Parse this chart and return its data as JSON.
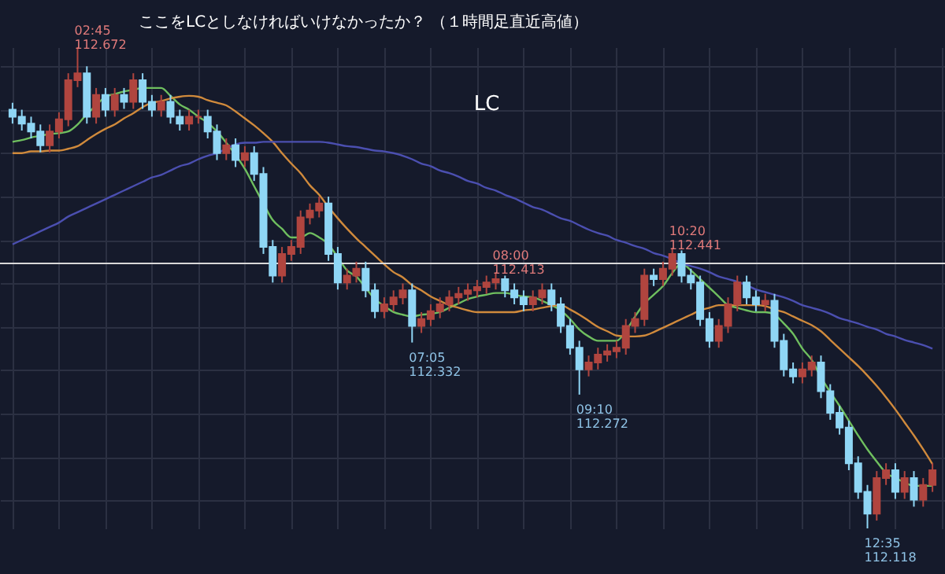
{
  "chart_data": {
    "type": "candlestick",
    "grid": true,
    "categories": [
      null,
      null,
      null,
      null,
      null,
      null,
      null,
      null,
      null,
      null,
      null,
      null,
      null,
      null,
      null,
      null,
      null,
      null,
      null,
      null,
      null,
      null,
      null,
      null,
      null,
      null,
      null,
      null,
      null,
      null,
      null,
      null,
      null,
      null,
      null,
      null,
      null,
      null,
      null,
      null,
      null,
      null,
      null,
      null,
      null,
      null,
      null,
      null,
      null,
      null,
      null,
      null,
      null,
      null,
      null,
      null,
      null,
      null,
      null,
      null,
      null,
      null,
      null,
      null,
      null,
      null,
      null,
      null,
      null,
      null,
      null,
      null,
      null,
      null,
      null,
      null,
      null,
      null,
      null,
      null,
      null,
      null,
      null,
      null,
      null,
      null,
      null,
      null,
      null,
      null,
      null,
      null,
      null,
      null,
      null,
      null,
      null,
      null,
      null,
      null
    ],
    "ohlc": [
      [
        112.6,
        112.608,
        112.584,
        112.592
      ],
      [
        112.592,
        112.6,
        112.576,
        112.584
      ],
      [
        112.584,
        112.592,
        112.567,
        112.575
      ],
      [
        112.575,
        112.583,
        112.551,
        112.559
      ],
      [
        112.559,
        112.583,
        112.551,
        112.575
      ],
      [
        112.575,
        112.597,
        112.567,
        112.589
      ],
      [
        112.589,
        112.642,
        112.581,
        112.634
      ],
      [
        112.634,
        112.672,
        112.626,
        112.642
      ],
      [
        112.642,
        112.65,
        112.584,
        112.592
      ],
      [
        112.592,
        112.625,
        112.584,
        112.617
      ],
      [
        112.617,
        112.625,
        112.592,
        112.6
      ],
      [
        112.6,
        112.625,
        112.592,
        112.617
      ],
      [
        112.617,
        112.625,
        112.601,
        112.609
      ],
      [
        112.609,
        112.642,
        112.601,
        112.634
      ],
      [
        112.634,
        112.642,
        112.601,
        112.609
      ],
      [
        112.609,
        112.617,
        112.592,
        112.6
      ],
      [
        112.6,
        112.617,
        112.592,
        112.609
      ],
      [
        112.609,
        112.617,
        112.584,
        112.592
      ],
      [
        112.592,
        112.6,
        112.576,
        112.584
      ],
      [
        112.584,
        112.6,
        112.576,
        112.592
      ],
      [
        112.592,
        112.6,
        112.584,
        112.592
      ],
      [
        112.592,
        112.6,
        112.567,
        112.575
      ],
      [
        112.575,
        112.583,
        112.542,
        112.55
      ],
      [
        112.55,
        112.567,
        112.542,
        112.559
      ],
      [
        112.559,
        112.567,
        112.534,
        112.542
      ],
      [
        112.542,
        112.558,
        112.534,
        112.55
      ],
      [
        112.55,
        112.558,
        112.518,
        112.526
      ],
      [
        112.526,
        112.534,
        112.434,
        112.442
      ],
      [
        112.442,
        112.45,
        112.401,
        112.409
      ],
      [
        112.409,
        112.442,
        112.401,
        112.434
      ],
      [
        112.434,
        112.45,
        112.426,
        112.442
      ],
      [
        112.442,
        112.484,
        112.434,
        112.476
      ],
      [
        112.476,
        112.492,
        112.468,
        112.484
      ],
      [
        112.484,
        112.5,
        112.476,
        112.492
      ],
      [
        112.492,
        112.5,
        112.426,
        112.434
      ],
      [
        112.434,
        112.442,
        112.393,
        112.401
      ],
      [
        112.401,
        112.417,
        112.393,
        112.409
      ],
      [
        112.409,
        112.425,
        112.401,
        112.417
      ],
      [
        112.417,
        112.425,
        112.384,
        112.392
      ],
      [
        112.392,
        112.4,
        112.36,
        112.368
      ],
      [
        112.368,
        112.384,
        112.36,
        112.376
      ],
      [
        112.376,
        112.392,
        112.368,
        112.384
      ],
      [
        112.384,
        112.4,
        112.376,
        112.392
      ],
      [
        112.392,
        112.4,
        112.332,
        112.351
      ],
      [
        112.351,
        112.367,
        112.343,
        112.359
      ],
      [
        112.359,
        112.376,
        112.351,
        112.368
      ],
      [
        112.368,
        112.384,
        112.36,
        112.376
      ],
      [
        112.376,
        112.392,
        112.368,
        112.384
      ],
      [
        112.384,
        112.396,
        112.376,
        112.388
      ],
      [
        112.388,
        112.4,
        112.38,
        112.392
      ],
      [
        112.392,
        112.404,
        112.384,
        112.396
      ],
      [
        112.396,
        112.409,
        112.388,
        112.401
      ],
      [
        112.401,
        112.413,
        112.393,
        112.405
      ],
      [
        112.405,
        112.409,
        112.384,
        112.392
      ],
      [
        112.392,
        112.4,
        112.376,
        112.384
      ],
      [
        112.384,
        112.392,
        112.368,
        112.376
      ],
      [
        112.376,
        112.392,
        112.368,
        112.384
      ],
      [
        112.384,
        112.4,
        112.376,
        112.392
      ],
      [
        112.392,
        112.4,
        112.368,
        112.376
      ],
      [
        112.376,
        112.384,
        112.343,
        112.351
      ],
      [
        112.351,
        112.359,
        112.318,
        112.326
      ],
      [
        112.326,
        112.334,
        112.272,
        112.301
      ],
      [
        112.301,
        112.317,
        112.293,
        112.309
      ],
      [
        112.309,
        112.326,
        112.301,
        112.318
      ],
      [
        112.318,
        112.33,
        112.31,
        112.322
      ],
      [
        112.322,
        112.334,
        112.314,
        112.326
      ],
      [
        112.326,
        112.359,
        112.318,
        112.351
      ],
      [
        112.351,
        112.367,
        112.343,
        112.359
      ],
      [
        112.359,
        112.417,
        112.351,
        112.409
      ],
      [
        112.409,
        112.417,
        112.397,
        112.405
      ],
      [
        112.405,
        112.425,
        112.397,
        112.417
      ],
      [
        112.417,
        112.441,
        112.409,
        112.434
      ],
      [
        112.434,
        112.438,
        112.401,
        112.409
      ],
      [
        112.409,
        112.417,
        112.393,
        112.401
      ],
      [
        112.401,
        112.409,
        112.351,
        112.359
      ],
      [
        112.359,
        112.367,
        112.326,
        112.334
      ],
      [
        112.334,
        112.359,
        112.326,
        112.351
      ],
      [
        112.351,
        112.384,
        112.343,
        112.376
      ],
      [
        112.376,
        112.409,
        112.368,
        112.401
      ],
      [
        112.401,
        112.409,
        112.376,
        112.384
      ],
      [
        112.384,
        112.392,
        112.368,
        112.376
      ],
      [
        112.376,
        112.388,
        112.368,
        112.38
      ],
      [
        112.38,
        112.388,
        112.326,
        112.334
      ],
      [
        112.334,
        112.342,
        112.293,
        112.301
      ],
      [
        112.301,
        112.309,
        112.285,
        112.293
      ],
      [
        112.293,
        112.309,
        112.285,
        112.301
      ],
      [
        112.301,
        112.317,
        112.293,
        112.309
      ],
      [
        112.309,
        112.317,
        112.268,
        112.276
      ],
      [
        112.276,
        112.284,
        112.243,
        112.251
      ],
      [
        112.251,
        112.259,
        112.226,
        112.234
      ],
      [
        112.234,
        112.242,
        112.185,
        112.193
      ],
      [
        112.193,
        112.201,
        112.152,
        112.16
      ],
      [
        112.16,
        112.168,
        112.118,
        112.135
      ],
      [
        112.135,
        112.184,
        112.127,
        112.176
      ],
      [
        112.176,
        112.193,
        112.168,
        112.185
      ],
      [
        112.185,
        112.193,
        112.152,
        112.16
      ],
      [
        112.16,
        112.184,
        112.152,
        112.176
      ],
      [
        112.176,
        112.184,
        112.143,
        112.151
      ],
      [
        112.151,
        112.176,
        112.143,
        112.168
      ],
      [
        112.168,
        112.193,
        112.16,
        112.185
      ]
    ],
    "series": [
      {
        "type": "line",
        "color": "#6fbf5f",
        "values": [
          112.563,
          112.565,
          112.568,
          112.57,
          112.572,
          112.573,
          112.575,
          112.583,
          112.595,
          112.605,
          112.615,
          112.618,
          112.621,
          112.623,
          112.625,
          112.625,
          112.625,
          112.616,
          112.606,
          112.6,
          112.592,
          112.585,
          112.575,
          112.562,
          112.548,
          112.532,
          112.512,
          112.492,
          112.473,
          112.463,
          112.453,
          112.453,
          112.458,
          112.453,
          112.445,
          112.43,
          112.415,
          112.408,
          112.395,
          112.382,
          112.374,
          112.367,
          112.364,
          112.362,
          112.364,
          112.365,
          112.367,
          112.372,
          112.377,
          112.382,
          112.385,
          112.387,
          112.389,
          112.389,
          112.387,
          112.385,
          112.384,
          112.38,
          112.375,
          112.369,
          112.359,
          112.347,
          112.339,
          112.334,
          112.334,
          112.334,
          112.345,
          112.362,
          112.377,
          112.387,
          112.397,
          112.412,
          112.423,
          112.415,
          112.405,
          112.395,
          112.385,
          112.375,
          112.372,
          112.369,
          112.367,
          112.367,
          112.364,
          112.354,
          112.342,
          112.325,
          112.312,
          112.292,
          112.275,
          112.259,
          112.242,
          112.225,
          112.209,
          112.195,
          112.182,
          112.176,
          112.171,
          112.167,
          112.167,
          112.167
        ]
      },
      {
        "type": "line",
        "color": "#d08a3c",
        "values": [
          112.55,
          112.55,
          112.552,
          112.552,
          112.553,
          112.553,
          112.555,
          112.558,
          112.565,
          112.572,
          112.578,
          112.583,
          112.59,
          112.596,
          112.603,
          112.608,
          112.61,
          112.613,
          112.615,
          112.616,
          112.615,
          112.611,
          112.608,
          112.605,
          112.598,
          112.59,
          112.582,
          112.573,
          112.563,
          112.55,
          112.538,
          112.527,
          112.513,
          112.502,
          112.488,
          112.475,
          112.463,
          112.452,
          112.442,
          112.432,
          112.422,
          112.413,
          112.407,
          112.398,
          112.392,
          112.385,
          112.38,
          112.375,
          112.372,
          112.369,
          112.367,
          112.367,
          112.367,
          112.367,
          112.367,
          112.369,
          112.37,
          112.372,
          112.374,
          112.375,
          112.37,
          112.364,
          112.357,
          112.35,
          112.345,
          112.34,
          112.339,
          112.339,
          112.34,
          112.344,
          112.349,
          112.354,
          112.359,
          112.364,
          112.369,
          112.372,
          112.375,
          112.375,
          112.375,
          112.375,
          112.375,
          112.374,
          112.37,
          112.367,
          112.362,
          112.357,
          112.352,
          112.345,
          112.335,
          112.325,
          112.315,
          112.305,
          112.294,
          112.282,
          112.269,
          112.255,
          112.24,
          112.225,
          112.209,
          112.192
        ]
      },
      {
        "type": "line",
        "color": "#4b4fb0",
        "values": [
          112.445,
          112.45,
          112.455,
          112.46,
          112.465,
          112.47,
          112.477,
          112.482,
          112.487,
          112.492,
          112.497,
          112.502,
          112.507,
          112.512,
          112.517,
          112.522,
          112.525,
          112.53,
          112.535,
          112.538,
          112.543,
          112.547,
          112.55,
          112.555,
          112.56,
          112.562,
          112.562,
          112.563,
          112.563,
          112.563,
          112.563,
          112.563,
          112.563,
          112.563,
          112.562,
          112.56,
          112.558,
          112.557,
          112.555,
          112.553,
          112.552,
          112.55,
          112.547,
          112.543,
          112.538,
          112.535,
          112.53,
          112.527,
          112.523,
          112.518,
          112.515,
          112.51,
          112.507,
          112.502,
          112.498,
          112.493,
          112.488,
          112.485,
          112.48,
          112.475,
          112.472,
          112.467,
          112.462,
          112.458,
          112.455,
          112.45,
          112.447,
          112.443,
          112.44,
          112.435,
          112.432,
          112.428,
          112.423,
          112.42,
          112.417,
          112.413,
          112.408,
          112.405,
          112.402,
          112.398,
          112.393,
          112.39,
          112.387,
          112.384,
          112.38,
          112.375,
          112.372,
          112.369,
          112.365,
          112.36,
          112.357,
          112.354,
          112.35,
          112.347,
          112.342,
          112.339,
          112.335,
          112.332,
          112.329,
          112.325
        ]
      }
    ],
    "ref_lines": [
      {
        "axis": "y",
        "value": 112.423,
        "color": "#d8d8d8"
      }
    ],
    "annotations": [
      "ここをLCとしなければいけなかったか？ （１時間足直近高値）",
      "LC",
      "02:45\n112.672",
      "07:05\n112.332",
      "08:00\n112.413",
      "09:10\n112.272",
      "10:20\n112.441",
      "12:35\n112.118"
    ]
  }
}
